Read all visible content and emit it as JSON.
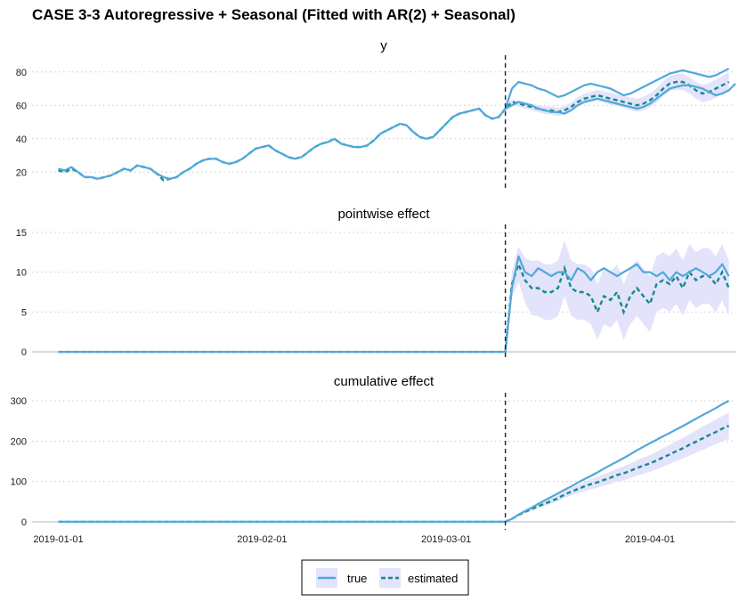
{
  "title": "CASE 3-3 Autoregressive + Seasonal (Fitted with AR(2) + Seasonal)",
  "colors": {
    "true": "#4fa8dc",
    "estimated": "#178a8a",
    "band": "#e3e3fb",
    "intervention": "#222222"
  },
  "legend": {
    "position": "bottom-center",
    "items": [
      {
        "label": "true",
        "style": "solid"
      },
      {
        "label": "estimated",
        "style": "dashed"
      }
    ]
  },
  "chart_data": [
    {
      "type": "line",
      "title": "y",
      "ylim": [
        10,
        90
      ],
      "yticks": [
        20,
        40,
        60,
        80
      ],
      "intervention_day": 68,
      "series": [
        {
          "name": "true",
          "start_day": 0,
          "values": [
            22,
            21,
            23,
            20,
            17,
            17,
            16,
            17,
            18,
            20,
            22,
            21,
            24,
            23,
            22,
            19,
            17,
            16,
            17,
            20,
            22,
            25,
            27,
            28,
            28,
            26,
            25,
            26,
            28,
            31,
            34,
            35,
            36,
            33,
            31,
            29,
            28,
            29,
            32,
            35,
            37,
            38,
            40,
            37,
            36,
            35,
            35,
            36,
            39,
            43,
            45,
            47,
            49,
            48,
            44,
            41,
            40,
            41,
            45,
            49,
            53,
            55,
            56,
            57,
            58,
            54,
            52,
            53,
            58,
            70,
            74,
            73,
            72,
            70,
            69,
            67,
            65,
            66,
            68,
            70,
            72,
            73,
            72,
            71,
            70,
            68,
            66,
            67,
            69,
            71,
            73,
            75,
            77,
            79,
            80,
            81,
            80,
            79,
            78,
            77,
            78,
            80,
            82
          ]
        },
        {
          "name": "true",
          "start_day": 68,
          "values": [
            58,
            60,
            62,
            61,
            60,
            58,
            57,
            56,
            56,
            55,
            57,
            60,
            62,
            63,
            64,
            63,
            62,
            61,
            60,
            59,
            58,
            59,
            61,
            64,
            67,
            70,
            71,
            72,
            72,
            71,
            70,
            68,
            66,
            67,
            69,
            73
          ]
        },
        {
          "name": "estimated",
          "start_day": 0,
          "values": [
            21,
            20,
            22,
            20,
            17,
            17,
            16,
            17,
            18,
            20,
            22,
            21,
            24,
            23,
            22,
            19,
            15,
            16,
            17,
            20,
            22,
            25,
            27,
            28,
            28,
            26,
            25,
            26,
            28,
            31,
            34,
            35,
            36,
            33,
            31,
            29,
            28,
            29,
            32,
            35,
            37,
            38,
            40,
            37,
            36,
            35,
            35,
            36,
            39,
            43,
            45,
            47,
            49,
            48,
            44,
            41,
            40,
            41,
            45,
            49,
            53,
            55,
            56,
            57,
            58,
            54,
            52,
            53,
            58,
            62,
            61,
            60,
            59,
            58,
            57,
            57,
            56,
            57,
            59,
            62,
            64,
            65,
            66,
            65,
            64,
            63,
            62,
            61,
            60,
            61,
            63,
            66,
            70,
            73,
            74,
            74,
            72,
            69,
            67,
            68,
            70,
            72,
            74
          ]
        }
      ]
    },
    {
      "type": "line",
      "title": "pointwise effect",
      "ylim": [
        -1,
        16
      ],
      "yticks": [
        0,
        5,
        10,
        15
      ],
      "intervention_day": 68,
      "series": [
        {
          "name": "true",
          "start_day": 0,
          "values": [
            0,
            0,
            0,
            0,
            0,
            0,
            0,
            0,
            0,
            0,
            0,
            0,
            0,
            0,
            0,
            0,
            0,
            0,
            0,
            0,
            0,
            0,
            0,
            0,
            0,
            0,
            0,
            0,
            0,
            0,
            0,
            0,
            0,
            0,
            0,
            0,
            0,
            0,
            0,
            0,
            0,
            0,
            0,
            0,
            0,
            0,
            0,
            0,
            0,
            0,
            0,
            0,
            0,
            0,
            0,
            0,
            0,
            0,
            0,
            0,
            0,
            0,
            0,
            0,
            0,
            0,
            0,
            0,
            0,
            8,
            12,
            10,
            9.5,
            10.5,
            10,
            9.5,
            10,
            10,
            9,
            10.5,
            10,
            9,
            10,
            10.5,
            10,
            9.5,
            10,
            10.5,
            11,
            10,
            10,
            9.5,
            10,
            9,
            10,
            9.5,
            10,
            10.5,
            10,
            9.5,
            10,
            11,
            9.5
          ]
        },
        {
          "name": "estimated",
          "start_day": 0,
          "values": [
            0,
            0,
            0,
            0,
            0,
            0,
            0,
            0,
            0,
            0,
            0,
            0,
            0,
            0,
            0,
            0,
            0,
            0,
            0,
            0,
            0,
            0,
            0,
            0,
            0,
            0,
            0,
            0,
            0,
            0,
            0,
            0,
            0,
            0,
            0,
            0,
            0,
            0,
            0,
            0,
            0,
            0,
            0,
            0,
            0,
            0,
            0,
            0,
            0,
            0,
            0,
            0,
            0,
            0,
            0,
            0,
            0,
            0,
            0,
            0,
            0,
            0,
            0,
            0,
            0,
            0,
            0,
            0,
            0,
            8.5,
            11,
            9,
            8,
            8,
            7.5,
            7.5,
            8,
            10.5,
            8,
            7.5,
            7.5,
            7,
            5,
            7,
            6.5,
            7.5,
            5,
            7,
            8,
            7,
            6,
            8.5,
            9,
            8.5,
            9.5,
            8,
            10,
            9,
            9.5,
            9.5,
            8.5,
            10,
            8
          ]
        }
      ]
    },
    {
      "type": "line",
      "title": "cumulative effect",
      "ylim": [
        -20,
        320
      ],
      "yticks": [
        0,
        100,
        200,
        300
      ],
      "intervention_day": 68,
      "series": [
        {
          "name": "true",
          "start_day": 0,
          "end_value": 300
        },
        {
          "name": "estimated",
          "start_day": 0,
          "end_value": 238
        }
      ]
    }
  ],
  "x_axis": {
    "ticks": [
      "2019-01-01",
      "2019-02-01",
      "2019-03-01",
      "2019-04-01"
    ],
    "tick_days": [
      0,
      31,
      59,
      90
    ],
    "xlim_days": [
      -4,
      103
    ]
  }
}
